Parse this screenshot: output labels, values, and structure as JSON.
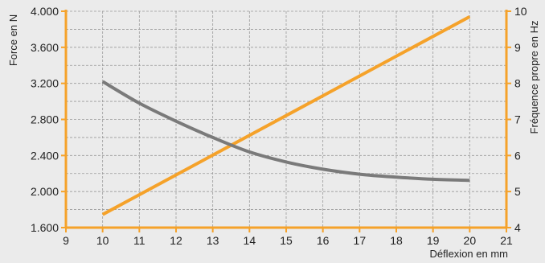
{
  "chart_data": {
    "type": "line",
    "xlabel": "Déflexion en mm",
    "ylabel_left": "Force en N",
    "ylabel_right": "Fréquence propre en Hz",
    "xlim": [
      9,
      21
    ],
    "ylim_left": [
      1600,
      4000
    ],
    "ylim_right": [
      4,
      10
    ],
    "x_ticks": [
      {
        "value": 9,
        "label": "9"
      },
      {
        "value": 10,
        "label": "10"
      },
      {
        "value": 11,
        "label": "11"
      },
      {
        "value": 12,
        "label": "12"
      },
      {
        "value": 13,
        "label": "13"
      },
      {
        "value": 14,
        "label": "14"
      },
      {
        "value": 15,
        "label": "15"
      },
      {
        "value": 16,
        "label": "16"
      },
      {
        "value": 17,
        "label": "17"
      },
      {
        "value": 18,
        "label": "18"
      },
      {
        "value": 19,
        "label": "19"
      },
      {
        "value": 20,
        "label": "20"
      },
      {
        "value": 21,
        "label": "21"
      }
    ],
    "y_left_ticks": [
      {
        "value": 1600,
        "label": "1.600"
      },
      {
        "value": 2000,
        "label": "2.000"
      },
      {
        "value": 2400,
        "label": "2.400"
      },
      {
        "value": 2800,
        "label": "2.800"
      },
      {
        "value": 3200,
        "label": "3.200"
      },
      {
        "value": 3600,
        "label": "3.600"
      },
      {
        "value": 4000,
        "label": "4.000"
      }
    ],
    "y_right_ticks": [
      {
        "value": 4,
        "label": "4"
      },
      {
        "value": 5,
        "label": "5"
      },
      {
        "value": 6,
        "label": "6"
      },
      {
        "value": 7,
        "label": "7"
      },
      {
        "value": 8,
        "label": "8"
      },
      {
        "value": 9,
        "label": "9"
      },
      {
        "value": 10,
        "label": "10"
      }
    ],
    "grid": true,
    "series": [
      {
        "axis": "left",
        "color": "#f5a22a",
        "x": [
          10,
          20
        ],
        "y": [
          1745,
          3940
        ]
      },
      {
        "axis": "right",
        "color": "#7a7a7a",
        "x": [
          10,
          11,
          12,
          13,
          14,
          15,
          16,
          17,
          18,
          19,
          20
        ],
        "y": [
          8.05,
          7.45,
          6.95,
          6.5,
          6.1,
          5.82,
          5.62,
          5.48,
          5.4,
          5.34,
          5.31
        ]
      }
    ]
  },
  "colors": {
    "background": "#ebebeb",
    "axis": "#f5a22a",
    "grid": "#9a9a9a",
    "text": "#222222"
  }
}
